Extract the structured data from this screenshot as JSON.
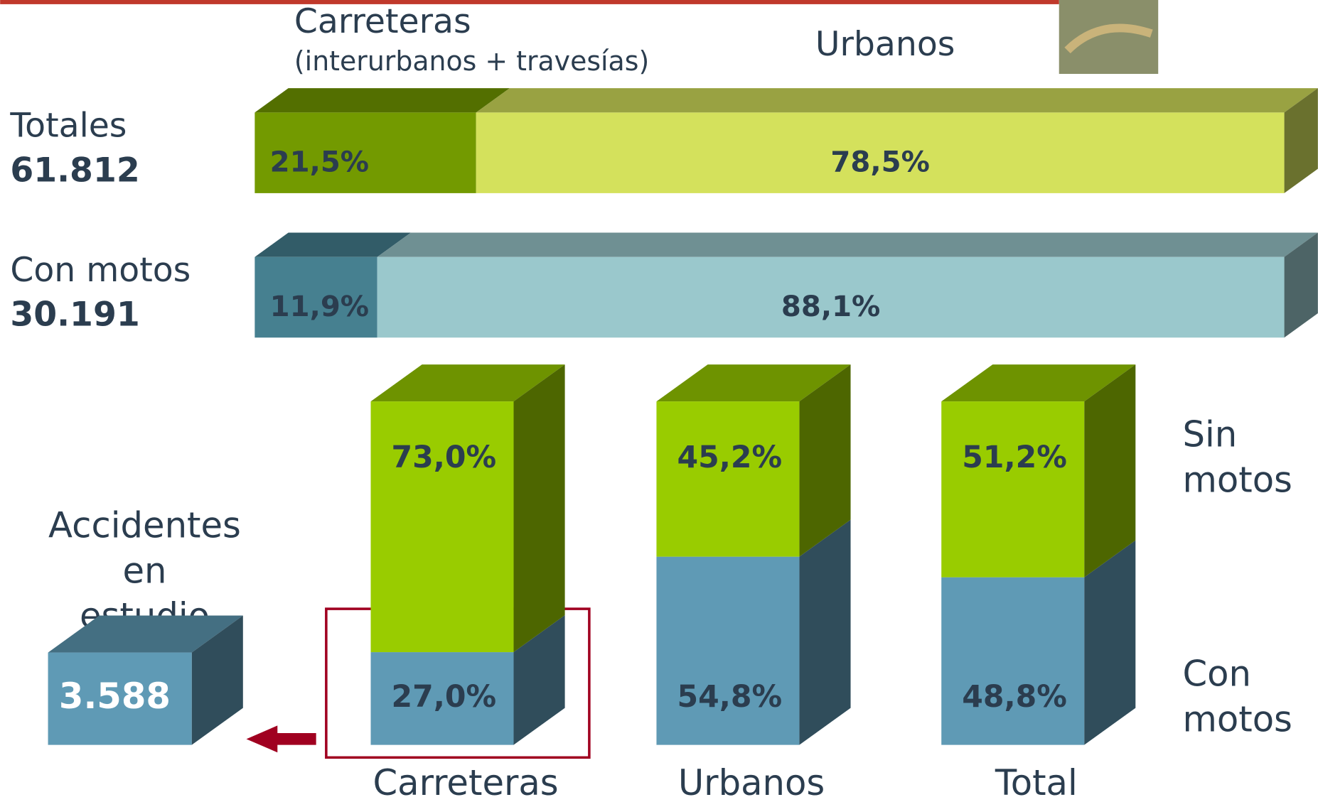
{
  "chart_data": [
    {
      "type": "hbar",
      "categories": [
        "Totales",
        "Con motos"
      ],
      "totals": [
        61812,
        30191
      ],
      "total_labels": [
        "61.812",
        "30.191"
      ],
      "xlim": [
        0,
        100
      ],
      "series": [
        {
          "name": "Carreteras",
          "note": "(interurbanos + travesías)",
          "colors": [
            "#739a00",
            "#468090"
          ],
          "values": [
            21.5,
            11.9
          ],
          "value_labels": [
            "21,5%",
            "11,9%"
          ]
        },
        {
          "name": "Urbanos",
          "colors": [
            "#d4e15c",
            "#9ac8cc"
          ],
          "values": [
            78.5,
            88.1
          ],
          "value_labels": [
            "78,5%",
            "88,1%"
          ]
        }
      ]
    },
    {
      "type": "bar",
      "categories": [
        "Carreteras",
        "Urbanos",
        "Total"
      ],
      "ylim": [
        0,
        100
      ],
      "series": [
        {
          "name": "Con motos",
          "color": "#5f9ab5",
          "values": [
            27.0,
            54.8,
            48.8
          ],
          "value_labels": [
            "27,0%",
            "54,8%",
            "48,8%"
          ]
        },
        {
          "name": "Sin motos",
          "color": "#99cc00",
          "values": [
            73.0,
            45.2,
            51.2
          ],
          "value_labels": [
            "73,0%",
            "45,2%",
            "51,2%"
          ]
        }
      ]
    }
  ],
  "callout": {
    "label": "Accidentes en estudio",
    "value": 3588,
    "value_label": "3.588"
  }
}
